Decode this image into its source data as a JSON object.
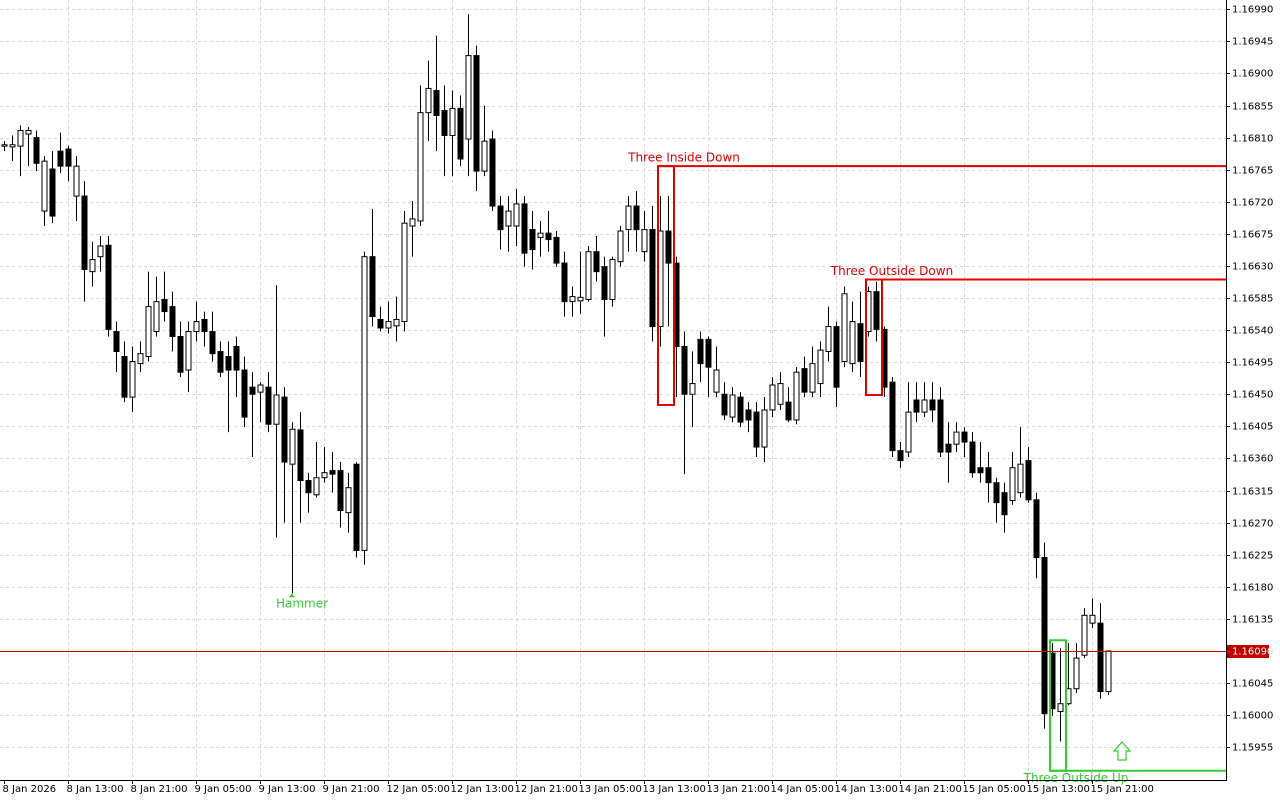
{
  "chart_data": {
    "type": "candlestick",
    "xlim": [
      -0.5,
      152.75
    ],
    "ylim": [
      1.15909,
      1.17003
    ],
    "grid": true,
    "up_color": "#ffffff",
    "down_color": "#000000",
    "wick_color": "#000000",
    "xticks": [
      {
        "value": 0,
        "label": "8 Jan 2026"
      },
      {
        "value": 8,
        "label": "8 Jan 13:00"
      },
      {
        "value": 16,
        "label": "8 Jan 21:00"
      },
      {
        "value": 24,
        "label": "9 Jan 05:00"
      },
      {
        "value": 32,
        "label": "9 Jan 13:00"
      },
      {
        "value": 40,
        "label": "9 Jan 21:00"
      },
      {
        "value": 48,
        "label": "12 Jan 05:00"
      },
      {
        "value": 56,
        "label": "12 Jan 13:00"
      },
      {
        "value": 64,
        "label": "12 Jan 21:00"
      },
      {
        "value": 72,
        "label": "13 Jan 05:00"
      },
      {
        "value": 80,
        "label": "13 Jan 13:00"
      },
      {
        "value": 88,
        "label": "13 Jan 21:00"
      },
      {
        "value": 96,
        "label": "14 Jan 05:00"
      },
      {
        "value": 104,
        "label": "14 Jan 13:00"
      },
      {
        "value": 112,
        "label": "14 Jan 21:00"
      },
      {
        "value": 120,
        "label": "15 Jan 05:00"
      },
      {
        "value": 128,
        "label": "15 Jan 13:00"
      },
      {
        "value": 136,
        "label": "15 Jan 21:00"
      }
    ],
    "yticks": [
      {
        "value": 1.1699,
        "label": "1.16990"
      },
      {
        "value": 1.16945,
        "label": "1.16945"
      },
      {
        "value": 1.169,
        "label": "1.16900"
      },
      {
        "value": 1.16855,
        "label": "1.16855"
      },
      {
        "value": 1.1681,
        "label": "1.16810"
      },
      {
        "value": 1.16765,
        "label": "1.16765"
      },
      {
        "value": 1.1672,
        "label": "1.16720"
      },
      {
        "value": 1.16675,
        "label": "1.16675"
      },
      {
        "value": 1.1663,
        "label": "1.16630"
      },
      {
        "value": 1.16585,
        "label": "1.16585"
      },
      {
        "value": 1.1654,
        "label": "1.16540"
      },
      {
        "value": 1.16495,
        "label": "1.16495"
      },
      {
        "value": 1.1645,
        "label": "1.16450"
      },
      {
        "value": 1.16405,
        "label": "1.16405"
      },
      {
        "value": 1.1636,
        "label": "1.16360"
      },
      {
        "value": 1.16315,
        "label": "1.16315"
      },
      {
        "value": 1.1627,
        "label": "1.16270"
      },
      {
        "value": 1.16225,
        "label": "1.16225"
      },
      {
        "value": 1.1618,
        "label": "1.16180"
      },
      {
        "value": 1.16135,
        "label": "1.16135"
      },
      {
        "value": 1.1609,
        "label": "1.16090"
      },
      {
        "value": 1.16045,
        "label": "1.16045"
      },
      {
        "value": 1.16,
        "label": "1.16000"
      },
      {
        "value": 1.15955,
        "label": "1.15955"
      }
    ],
    "open": [
      1.16798,
      1.16797,
      1.16798,
      1.16815,
      1.1681,
      1.16707,
      1.16766,
      1.16791,
      1.16794,
      1.16728,
      1.16728,
      1.16622,
      1.16643,
      1.16659,
      1.16538,
      1.16503,
      1.16446,
      1.16493,
      1.16503,
      1.16538,
      1.16583,
      1.16573,
      1.16531,
      1.16484,
      1.16538,
      1.16555,
      1.16538,
      1.1651,
      1.16503,
      1.16517,
      1.16484,
      1.1646,
      1.16453,
      1.1646,
      1.16408,
      1.16446,
      1.16352,
      1.164,
      1.16329,
      1.16309,
      1.16333,
      1.16343,
      1.16343,
      1.16284,
      1.16352,
      1.16231,
      1.16643,
      1.16555,
      1.16543,
      1.16546,
      1.16552,
      1.16686,
      1.16693,
      1.16845,
      1.16876,
      1.16848,
      1.16813,
      1.16851,
      1.16808,
      1.16925,
      1.16763,
      1.16808,
      1.16714,
      1.16686,
      1.16686,
      1.16717,
      1.16681,
      1.1667,
      1.16676,
      1.1667,
      1.16634,
      1.1658,
      1.16581,
      1.16583,
      1.1665,
      1.16629,
      1.16583,
      1.16636,
      1.16681,
      1.16714,
      1.1665,
      1.16681,
      1.16545,
      1.16679,
      1.16634,
      1.16517,
      1.1645,
      1.16527,
      1.16527,
      1.16453,
      1.1645,
      1.16418,
      1.16446,
      1.16428,
      1.16425,
      1.16376,
      1.16428,
      1.16436,
      1.16439,
      1.16414,
      1.16486,
      1.16453,
      1.16465,
      1.1651,
      1.16545,
      1.16496,
      1.16493,
      1.16549,
      1.16538,
      1.16594,
      1.16541,
      1.16467,
      1.16371,
      1.16369,
      1.16442,
      1.16425,
      1.16442,
      1.16442,
      1.1638,
      1.1638,
      1.16397,
      1.16383,
      1.16347,
      1.16347,
      1.16326,
      1.16312,
      1.16301,
      1.16312,
      1.16357,
      1.16302,
      1.16221,
      1.16087,
      1.16005,
      1.16016,
      1.16037,
      1.16084,
      1.16129,
      1.16129,
      1.16033
    ],
    "high": [
      1.16805,
      1.16813,
      1.16827,
      1.16825,
      1.1682,
      1.16784,
      1.16791,
      1.16817,
      1.16798,
      1.16784,
      1.16749,
      1.16664,
      1.16672,
      1.16672,
      1.16552,
      1.16524,
      1.16517,
      1.16524,
      1.16622,
      1.16615,
      1.16622,
      1.16594,
      1.16552,
      1.16552,
      1.1658,
      1.16566,
      1.16566,
      1.16524,
      1.16524,
      1.16531,
      1.16503,
      1.16481,
      1.16467,
      1.16481,
      1.16603,
      1.1646,
      1.16411,
      1.16425,
      1.1634,
      1.16383,
      1.16376,
      1.16369,
      1.16355,
      1.1634,
      1.16355,
      1.1665,
      1.1671,
      1.16573,
      1.1658,
      1.16587,
      1.16707,
      1.16721,
      1.16883,
      1.16918,
      1.16953,
      1.16883,
      1.16876,
      1.16869,
      1.16983,
      1.16939,
      1.16855,
      1.1682,
      1.16728,
      1.16728,
      1.16738,
      1.16728,
      1.16707,
      1.16693,
      1.16707,
      1.16679,
      1.1665,
      1.16601,
      1.1665,
      1.16658,
      1.16672,
      1.16643,
      1.16643,
      1.16686,
      1.16728,
      1.16735,
      1.16707,
      1.16714,
      1.16728,
      1.16728,
      1.16643,
      1.16538,
      1.1651,
      1.16538,
      1.16531,
      1.16517,
      1.16467,
      1.1646,
      1.16453,
      1.16439,
      1.16439,
      1.16446,
      1.16474,
      1.16481,
      1.1646,
      1.16488,
      1.16503,
      1.16517,
      1.16524,
      1.16573,
      1.16552,
      1.16601,
      1.1658,
      1.16594,
      1.16601,
      1.16608,
      1.16545,
      1.16474,
      1.16383,
      1.16467,
      1.16467,
      1.16467,
      1.16467,
      1.1646,
      1.16411,
      1.16411,
      1.16404,
      1.16397,
      1.16383,
      1.16369,
      1.16333,
      1.16326,
      1.16369,
      1.16404,
      1.16376,
      1.16312,
      1.16242,
      1.16101,
      1.16094,
      1.16101,
      1.16101,
      1.1615,
      1.16164,
      1.16157,
      1.1609
    ],
    "low": [
      1.16791,
      1.16777,
      1.16756,
      1.1677,
      1.16763,
      1.16686,
      1.1669,
      1.1676,
      1.16749,
      1.16693,
      1.1658,
      1.16601,
      1.16622,
      1.16531,
      1.16481,
      1.16439,
      1.16425,
      1.16481,
      1.16496,
      1.16531,
      1.16552,
      1.1651,
      1.16474,
      1.16453,
      1.16524,
      1.16517,
      1.16496,
      1.16474,
      1.16397,
      1.16446,
      1.16404,
      1.16362,
      1.16411,
      1.16397,
      1.16249,
      1.1627,
      1.16171,
      1.1627,
      1.16284,
      1.16305,
      1.16326,
      1.16312,
      1.16263,
      1.16256,
      1.16221,
      1.16211,
      1.16545,
      1.16538,
      1.16535,
      1.16524,
      1.16538,
      1.16643,
      1.16686,
      1.16805,
      1.16791,
      1.16756,
      1.16756,
      1.1677,
      1.16756,
      1.16735,
      1.16756,
      1.16707,
      1.16653,
      1.1665,
      1.16658,
      1.16629,
      1.16625,
      1.16643,
      1.1665,
      1.16629,
      1.16559,
      1.16559,
      1.16563,
      1.1658,
      1.16608,
      1.16531,
      1.16573,
      1.16629,
      1.1665,
      1.1665,
      1.16636,
      1.16524,
      1.16517,
      1.16545,
      1.16446,
      1.16338,
      1.16404,
      1.16467,
      1.16446,
      1.16446,
      1.16414,
      1.16411,
      1.16404,
      1.16397,
      1.16362,
      1.16355,
      1.16418,
      1.16428,
      1.16411,
      1.16408,
      1.16446,
      1.16446,
      1.16446,
      1.16496,
      1.16432,
      1.16488,
      1.16481,
      1.16474,
      1.16531,
      1.16524,
      1.16446,
      1.16362,
      1.16347,
      1.16362,
      1.16411,
      1.16418,
      1.16411,
      1.16362,
      1.16326,
      1.16369,
      1.16362,
      1.16333,
      1.16326,
      1.16298,
      1.1627,
      1.16256,
      1.16295,
      1.16305,
      1.16298,
      1.16192,
      1.15981,
      1.15999,
      1.15963,
      1.16014,
      1.16031,
      1.1608,
      1.16122,
      1.16023,
      1.16028
    ],
    "close": [
      1.168,
      1.168,
      1.1682,
      1.1682,
      1.16774,
      1.16777,
      1.167,
      1.1677,
      1.1677,
      1.1677,
      1.16625,
      1.16639,
      1.16658,
      1.16541,
      1.1651,
      1.16446,
      1.16496,
      1.16507,
      1.16573,
      1.1658,
      1.16566,
      1.16531,
      1.16481,
      1.16538,
      1.16552,
      1.16538,
      1.16507,
      1.16481,
      1.16484,
      1.16484,
      1.16418,
      1.1645,
      1.16463,
      1.16408,
      1.16449,
      1.16355,
      1.16401,
      1.16329,
      1.16312,
      1.16333,
      1.1634,
      1.16338,
      1.16287,
      1.16319,
      1.16231,
      1.16643,
      1.16559,
      1.16543,
      1.16552,
      1.16555,
      1.1669,
      1.16696,
      1.16845,
      1.16879,
      1.16841,
      1.16813,
      1.16851,
      1.1678,
      1.16925,
      1.16763,
      1.16805,
      1.16714,
      1.16681,
      1.16707,
      1.16717,
      1.16648,
      1.16653,
      1.16676,
      1.16667,
      1.16634,
      1.1658,
      1.16587,
      1.16586,
      1.1665,
      1.16622,
      1.16583,
      1.16639,
      1.16679,
      1.16714,
      1.16681,
      1.16681,
      1.16545,
      1.16679,
      1.16634,
      1.16517,
      1.1645,
      1.16465,
      1.16493,
      1.16488,
      1.16484,
      1.16421,
      1.16449,
      1.16411,
      1.16414,
      1.16376,
      1.16428,
      1.16463,
      1.16465,
      1.16414,
      1.16481,
      1.16453,
      1.16493,
      1.16512,
      1.16545,
      1.1646,
      1.16591,
      1.16552,
      1.16496,
      1.16594,
      1.16541,
      1.1646,
      1.16371,
      1.16357,
      1.16425,
      1.16425,
      1.16442,
      1.16428,
      1.16369,
      1.16369,
      1.16397,
      1.16383,
      1.1634,
      1.1634,
      1.16326,
      1.16298,
      1.16281,
      1.16347,
      1.16352,
      1.16302,
      1.16221,
      1.16002,
      1.16009,
      1.16016,
      1.16037,
      1.1608,
      1.1614,
      1.1614,
      1.16033,
      1.1609
    ],
    "current_price": {
      "value": 1.1609,
      "label": "1.16090",
      "color": "#c00000"
    },
    "annotations": [
      {
        "text": "Three Inside Down",
        "from": 82,
        "to": 84,
        "top": 1.1677,
        "bottom": 1.16435,
        "level": "top",
        "color": "#e00000"
      },
      {
        "text": "Three Outside Down",
        "from": 108,
        "to": 110,
        "top": 1.16611,
        "bottom": 1.16449,
        "level": "top",
        "color": "#e00000"
      },
      {
        "text": "Three Outside Up",
        "from": 131,
        "to": 133,
        "top": 1.16105,
        "bottom": 1.15922,
        "level": "bottom",
        "color": "#33cc33"
      }
    ],
    "markers": [
      {
        "text": "Hammer",
        "index": 36,
        "color": "#33cc33"
      }
    ]
  }
}
